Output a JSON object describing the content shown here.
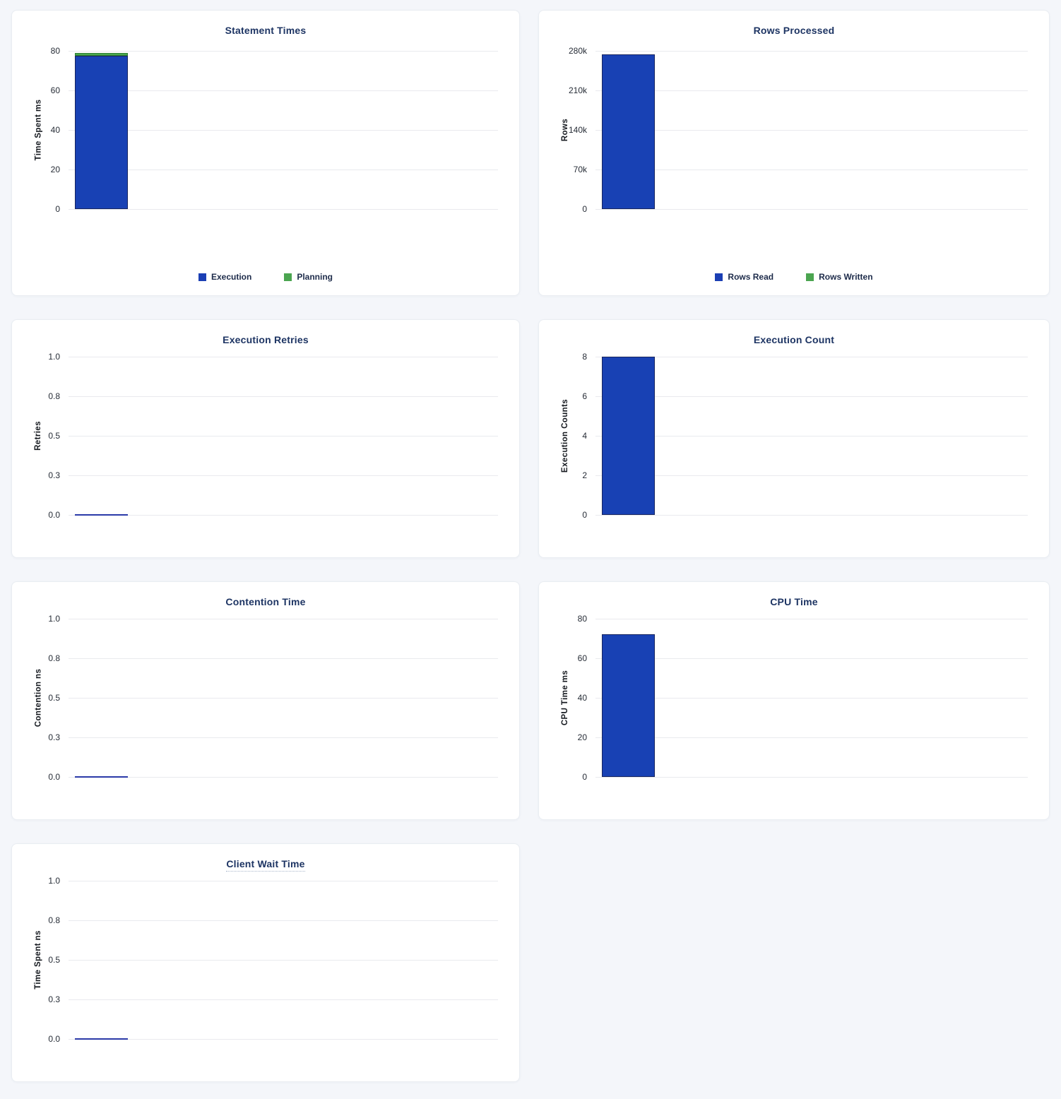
{
  "page": {
    "background_color": "#f4f6fa",
    "card_background": "#ffffff"
  },
  "colors": {
    "bar_blue": "#1841b4",
    "bar_blue_border": "#17255f",
    "bar_green": "#4aa64e",
    "bar_green_border": "#2d7f33",
    "zero_line_blue": "#2b3aa8",
    "title_navy": "#1d3463",
    "gridline": "#e9eaee",
    "tick_text": "#262c36"
  },
  "chart_data": [
    {
      "type": "bar",
      "title": "Statement Times",
      "ylabel": "Time Spent ms",
      "ylim": [
        0,
        80
      ],
      "yticks": [
        "80",
        "60",
        "40",
        "20",
        "0"
      ],
      "grid": true,
      "stacked": true,
      "series": [
        {
          "name": "Execution",
          "color": "blue",
          "value": 77.5
        },
        {
          "name": "Planning",
          "color": "green",
          "value": 1.5
        }
      ],
      "legend": [
        {
          "label": "Execution",
          "color": "blue"
        },
        {
          "label": "Planning",
          "color": "green"
        }
      ],
      "legend_position": "bottom-center",
      "size": "tall",
      "title_tooltip_underline": false
    },
    {
      "type": "bar",
      "title": "Rows Processed",
      "ylabel": "Rows",
      "ylim": [
        0,
        280000
      ],
      "yticks": [
        "280k",
        "210k",
        "140k",
        "70k",
        "0"
      ],
      "grid": true,
      "stacked": true,
      "series": [
        {
          "name": "Rows Read",
          "color": "blue",
          "value": 274000
        },
        {
          "name": "Rows Written",
          "color": "green",
          "value": 0
        }
      ],
      "legend": [
        {
          "label": "Rows Read",
          "color": "blue"
        },
        {
          "label": "Rows Written",
          "color": "green"
        }
      ],
      "legend_position": "bottom-center",
      "size": "tall",
      "title_tooltip_underline": false
    },
    {
      "type": "bar",
      "title": "Execution Retries",
      "ylabel": "Retries",
      "ylim": [
        0,
        1
      ],
      "yticks": [
        "1.0",
        "0.8",
        "0.5",
        "0.3",
        "0.0"
      ],
      "grid": true,
      "stacked": false,
      "series": [
        {
          "name": "Retries",
          "color": "blue",
          "value": 0
        }
      ],
      "legend": [],
      "legend_position": "none",
      "size": "short",
      "title_tooltip_underline": false
    },
    {
      "type": "bar",
      "title": "Execution Count",
      "ylabel": "Execution Counts",
      "ylim": [
        0,
        8
      ],
      "yticks": [
        "8",
        "6",
        "4",
        "2",
        "0"
      ],
      "grid": true,
      "stacked": false,
      "series": [
        {
          "name": "Execution Count",
          "color": "blue",
          "value": 8
        }
      ],
      "legend": [],
      "legend_position": "none",
      "size": "short",
      "title_tooltip_underline": false
    },
    {
      "type": "bar",
      "title": "Contention Time",
      "ylabel": "Contention ns",
      "ylim": [
        0,
        1
      ],
      "yticks": [
        "1.0",
        "0.8",
        "0.5",
        "0.3",
        "0.0"
      ],
      "grid": true,
      "stacked": false,
      "series": [
        {
          "name": "Contention",
          "color": "blue",
          "value": 0
        }
      ],
      "legend": [],
      "legend_position": "none",
      "size": "short",
      "title_tooltip_underline": false
    },
    {
      "type": "bar",
      "title": "CPU Time",
      "ylabel": "CPU Time ms",
      "ylim": [
        0,
        80
      ],
      "yticks": [
        "80",
        "60",
        "40",
        "20",
        "0"
      ],
      "grid": true,
      "stacked": false,
      "series": [
        {
          "name": "CPU Time",
          "color": "blue",
          "value": 72
        }
      ],
      "legend": [],
      "legend_position": "none",
      "size": "short",
      "title_tooltip_underline": false
    },
    {
      "type": "bar",
      "title": "Client Wait Time",
      "ylabel": "Time Spent ns",
      "ylim": [
        0,
        1
      ],
      "yticks": [
        "1.0",
        "0.8",
        "0.5",
        "0.3",
        "0.0"
      ],
      "grid": true,
      "stacked": false,
      "series": [
        {
          "name": "Client Wait",
          "color": "blue",
          "value": 0
        }
      ],
      "legend": [],
      "legend_position": "none",
      "size": "short",
      "title_tooltip_underline": true
    }
  ]
}
